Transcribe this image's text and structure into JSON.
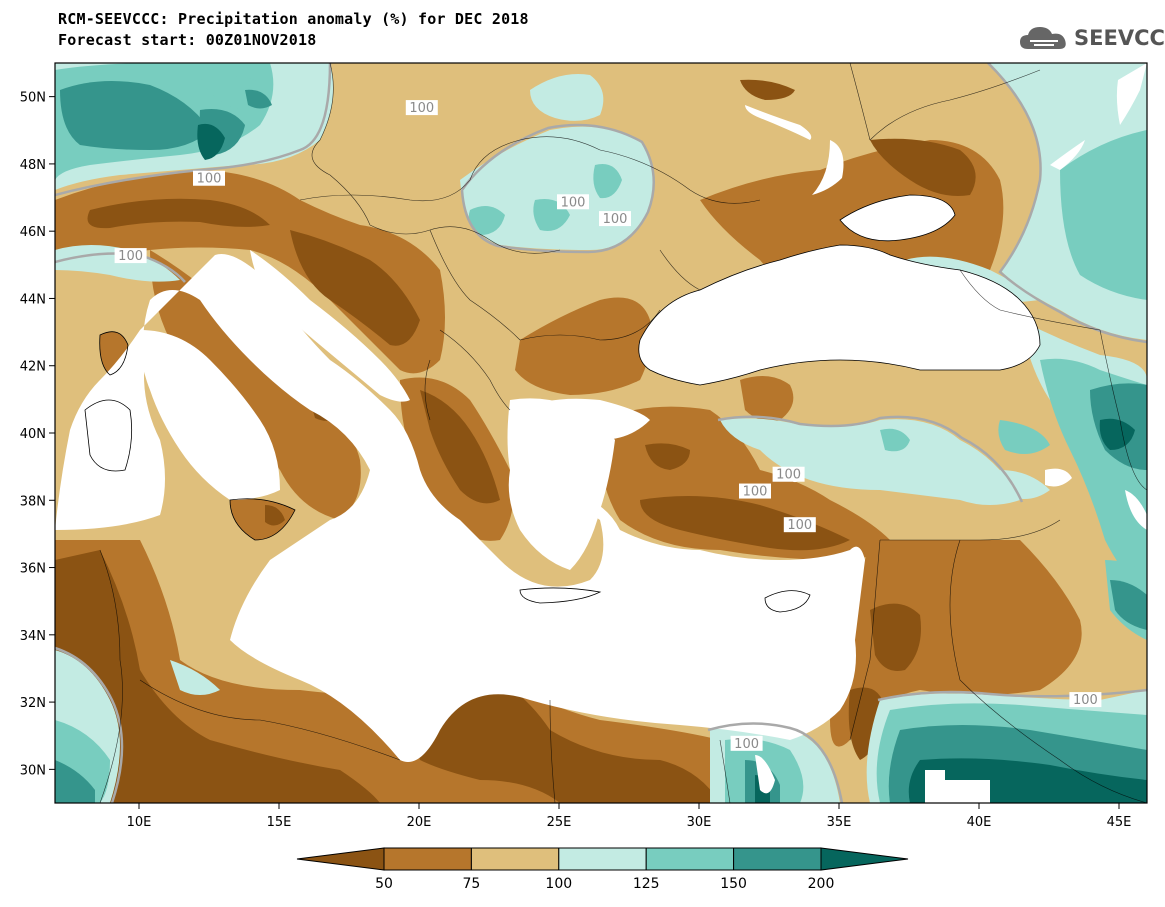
{
  "header": {
    "title": "RCM-SEEVCCC: Precipitation anomaly (%) for DEC 2018",
    "subtitle": "Forecast start: 00Z01NOV2018"
  },
  "logo": {
    "text": "SEEVCCC",
    "icon": "cloud-icon"
  },
  "map": {
    "lon_range": [
      7,
      46
    ],
    "lat_range": [
      29,
      51
    ],
    "lat_ticks": [
      {
        "value": 50,
        "label": "50N"
      },
      {
        "value": 48,
        "label": "48N"
      },
      {
        "value": 46,
        "label": "46N"
      },
      {
        "value": 44,
        "label": "44N"
      },
      {
        "value": 42,
        "label": "42N"
      },
      {
        "value": 40,
        "label": "40N"
      },
      {
        "value": 38,
        "label": "38N"
      },
      {
        "value": 36,
        "label": "36N"
      },
      {
        "value": 34,
        "label": "34N"
      },
      {
        "value": 32,
        "label": "32N"
      },
      {
        "value": 30,
        "label": "30N"
      }
    ],
    "lon_ticks": [
      {
        "value": 10,
        "label": "10E"
      },
      {
        "value": 15,
        "label": "15E"
      },
      {
        "value": 20,
        "label": "20E"
      },
      {
        "value": 25,
        "label": "25E"
      },
      {
        "value": 30,
        "label": "30E"
      },
      {
        "value": 35,
        "label": "35E"
      },
      {
        "value": 40,
        "label": "40E"
      },
      {
        "value": 45,
        "label": "45E"
      }
    ],
    "contour_labels": [
      {
        "text": "100",
        "lon": 20.1,
        "lat": 49.6
      },
      {
        "text": "100",
        "lon": 12.5,
        "lat": 47.5
      },
      {
        "text": "100",
        "lon": 9.7,
        "lat": 45.2
      },
      {
        "text": "100",
        "lon": 25.5,
        "lat": 46.8
      },
      {
        "text": "100",
        "lon": 27.0,
        "lat": 46.3
      },
      {
        "text": "100",
        "lon": 32.0,
        "lat": 38.2
      },
      {
        "text": "100",
        "lon": 33.2,
        "lat": 38.7
      },
      {
        "text": "100",
        "lon": 33.6,
        "lat": 37.2
      },
      {
        "text": "100",
        "lon": 31.7,
        "lat": 30.7
      },
      {
        "text": "100",
        "lon": 43.8,
        "lat": 32.0
      }
    ]
  },
  "colorbar": {
    "levels": [
      "50",
      "75",
      "100",
      "125",
      "150",
      "200"
    ],
    "colors": [
      "#8b5313",
      "#b6762c",
      "#dfbf7c",
      "#c3ebe3",
      "#78cdbf",
      "#35958c",
      "#06665d"
    ]
  }
}
